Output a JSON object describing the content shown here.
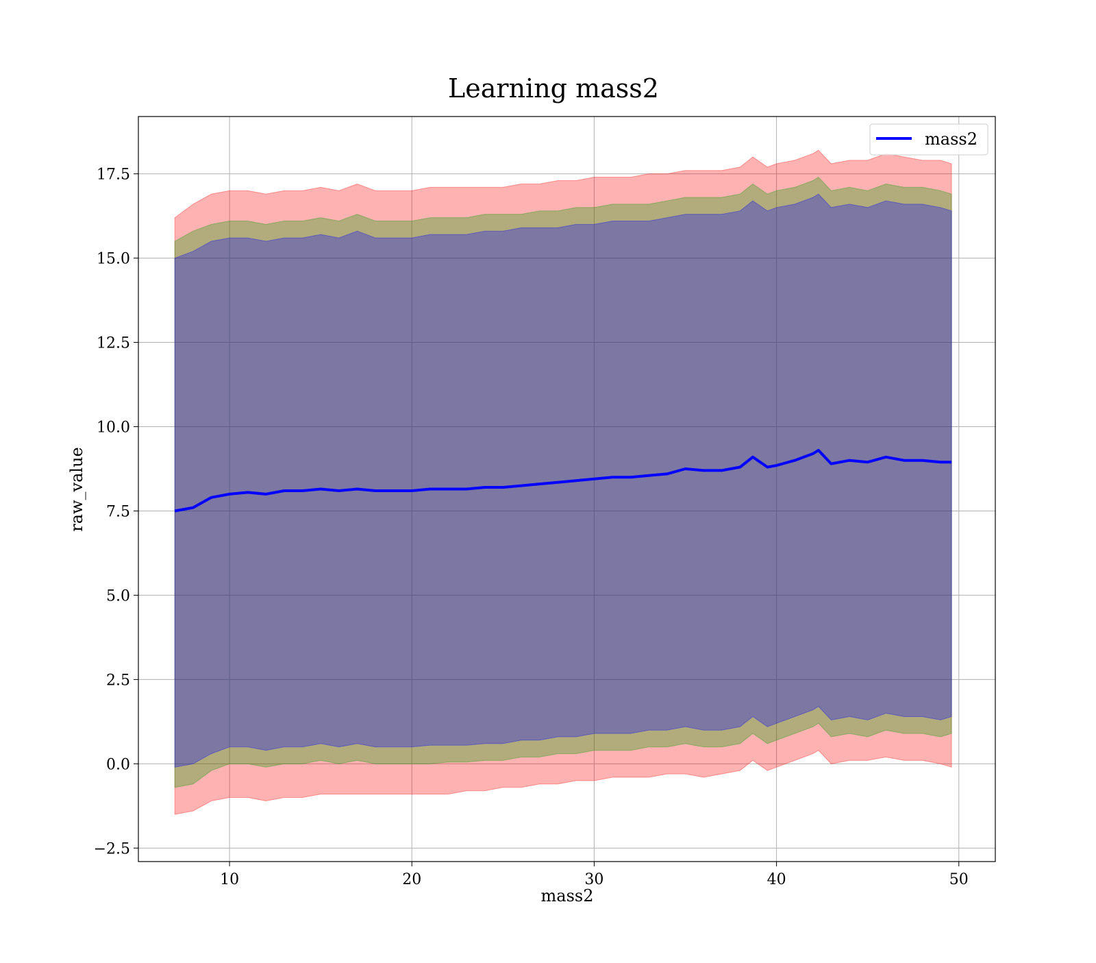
{
  "chart_data": {
    "type": "area",
    "title": "Learning mass2",
    "xlabel": "mass2",
    "ylabel": "raw_value",
    "xlim": [
      5,
      52
    ],
    "ylim": [
      -2.9,
      19.2
    ],
    "xticks": [
      10,
      20,
      30,
      40,
      50
    ],
    "xtick_labels": [
      "10",
      "20",
      "30",
      "40",
      "50"
    ],
    "yticks": [
      -2.5,
      0.0,
      2.5,
      5.0,
      7.5,
      10.0,
      12.5,
      15.0,
      17.5
    ],
    "ytick_labels": [
      "−2.5",
      "0.0",
      "2.5",
      "5.0",
      "7.5",
      "10.0",
      "12.5",
      "15.0",
      "17.5"
    ],
    "grid": true,
    "legend": {
      "position": "top-right",
      "entries": [
        {
          "label": "mass2",
          "color": "#0000ff"
        }
      ]
    },
    "x": [
      7.0,
      8.0,
      9.0,
      10.0,
      11.0,
      12.0,
      13.0,
      14.0,
      15.0,
      16.0,
      17.0,
      18.0,
      19.0,
      20.0,
      21.0,
      22.0,
      23.0,
      24.0,
      25.0,
      26.0,
      27.0,
      28.0,
      29.0,
      30.0,
      31.0,
      32.0,
      33.0,
      34.0,
      35.0,
      36.0,
      37.0,
      38.0,
      38.7,
      39.5,
      40.0,
      41.0,
      42.0,
      42.3,
      43.0,
      44.0,
      45.0,
      46.0,
      47.0,
      48.0,
      49.0,
      49.6
    ],
    "series": [
      {
        "name": "mass2",
        "color": "#0000ff",
        "values": [
          7.5,
          7.6,
          7.9,
          8.0,
          8.05,
          8.0,
          8.1,
          8.1,
          8.15,
          8.1,
          8.15,
          8.1,
          8.1,
          8.1,
          8.15,
          8.15,
          8.15,
          8.2,
          8.2,
          8.25,
          8.3,
          8.35,
          8.4,
          8.45,
          8.5,
          8.5,
          8.55,
          8.6,
          8.75,
          8.7,
          8.7,
          8.8,
          9.1,
          8.8,
          8.85,
          9.0,
          9.2,
          9.3,
          8.9,
          9.0,
          8.95,
          9.1,
          9.0,
          9.0,
          8.95,
          8.95
        ]
      }
    ],
    "bands": [
      {
        "color": "#ff0000",
        "opacity": 0.3,
        "upper": [
          16.2,
          16.6,
          16.9,
          17.0,
          17.0,
          16.9,
          17.0,
          17.0,
          17.1,
          17.0,
          17.2,
          17.0,
          17.0,
          17.0,
          17.1,
          17.1,
          17.1,
          17.1,
          17.1,
          17.2,
          17.2,
          17.3,
          17.3,
          17.4,
          17.4,
          17.4,
          17.5,
          17.5,
          17.6,
          17.6,
          17.6,
          17.7,
          18.0,
          17.7,
          17.8,
          17.9,
          18.1,
          18.2,
          17.8,
          17.9,
          17.9,
          18.1,
          18.0,
          17.9,
          17.9,
          17.8
        ],
        "lower": [
          -1.5,
          -1.4,
          -1.1,
          -1.0,
          -1.0,
          -1.1,
          -1.0,
          -1.0,
          -0.9,
          -0.9,
          -0.9,
          -0.9,
          -0.9,
          -0.9,
          -0.9,
          -0.9,
          -0.8,
          -0.8,
          -0.7,
          -0.7,
          -0.6,
          -0.6,
          -0.5,
          -0.5,
          -0.4,
          -0.4,
          -0.4,
          -0.3,
          -0.3,
          -0.4,
          -0.3,
          -0.2,
          0.1,
          -0.2,
          -0.1,
          0.1,
          0.3,
          0.4,
          0.0,
          0.1,
          0.1,
          0.2,
          0.1,
          0.1,
          0.0,
          -0.1
        ]
      },
      {
        "color": "#00a000",
        "opacity": 0.3,
        "upper": [
          15.5,
          15.8,
          16.0,
          16.1,
          16.1,
          16.0,
          16.1,
          16.1,
          16.2,
          16.1,
          16.3,
          16.1,
          16.1,
          16.1,
          16.2,
          16.2,
          16.2,
          16.3,
          16.3,
          16.3,
          16.4,
          16.4,
          16.5,
          16.5,
          16.6,
          16.6,
          16.6,
          16.7,
          16.8,
          16.8,
          16.8,
          16.9,
          17.2,
          16.9,
          17.0,
          17.1,
          17.3,
          17.4,
          17.0,
          17.1,
          17.0,
          17.2,
          17.1,
          17.1,
          17.0,
          16.9
        ],
        "lower": [
          -0.7,
          -0.6,
          -0.2,
          0.0,
          0.0,
          -0.1,
          0.0,
          0.0,
          0.1,
          0.0,
          0.1,
          0.0,
          0.0,
          0.0,
          0.0,
          0.05,
          0.05,
          0.1,
          0.1,
          0.2,
          0.2,
          0.3,
          0.3,
          0.4,
          0.4,
          0.4,
          0.5,
          0.5,
          0.6,
          0.5,
          0.5,
          0.6,
          0.9,
          0.6,
          0.7,
          0.9,
          1.1,
          1.2,
          0.8,
          0.9,
          0.8,
          1.0,
          0.9,
          0.9,
          0.8,
          0.9
        ]
      },
      {
        "color": "#0000ff",
        "opacity": 0.3,
        "upper": [
          15.0,
          15.2,
          15.5,
          15.6,
          15.6,
          15.5,
          15.6,
          15.6,
          15.7,
          15.6,
          15.8,
          15.6,
          15.6,
          15.6,
          15.7,
          15.7,
          15.7,
          15.8,
          15.8,
          15.9,
          15.9,
          15.9,
          16.0,
          16.0,
          16.1,
          16.1,
          16.1,
          16.2,
          16.3,
          16.3,
          16.3,
          16.4,
          16.7,
          16.4,
          16.5,
          16.6,
          16.8,
          16.9,
          16.5,
          16.6,
          16.5,
          16.7,
          16.6,
          16.6,
          16.5,
          16.4
        ],
        "lower": [
          -0.1,
          0.0,
          0.3,
          0.5,
          0.5,
          0.4,
          0.5,
          0.5,
          0.6,
          0.5,
          0.6,
          0.5,
          0.5,
          0.5,
          0.55,
          0.55,
          0.55,
          0.6,
          0.6,
          0.7,
          0.7,
          0.8,
          0.8,
          0.9,
          0.9,
          0.9,
          1.0,
          1.0,
          1.1,
          1.0,
          1.0,
          1.1,
          1.4,
          1.1,
          1.2,
          1.4,
          1.6,
          1.7,
          1.3,
          1.4,
          1.3,
          1.5,
          1.4,
          1.4,
          1.3,
          1.4
        ]
      }
    ]
  }
}
